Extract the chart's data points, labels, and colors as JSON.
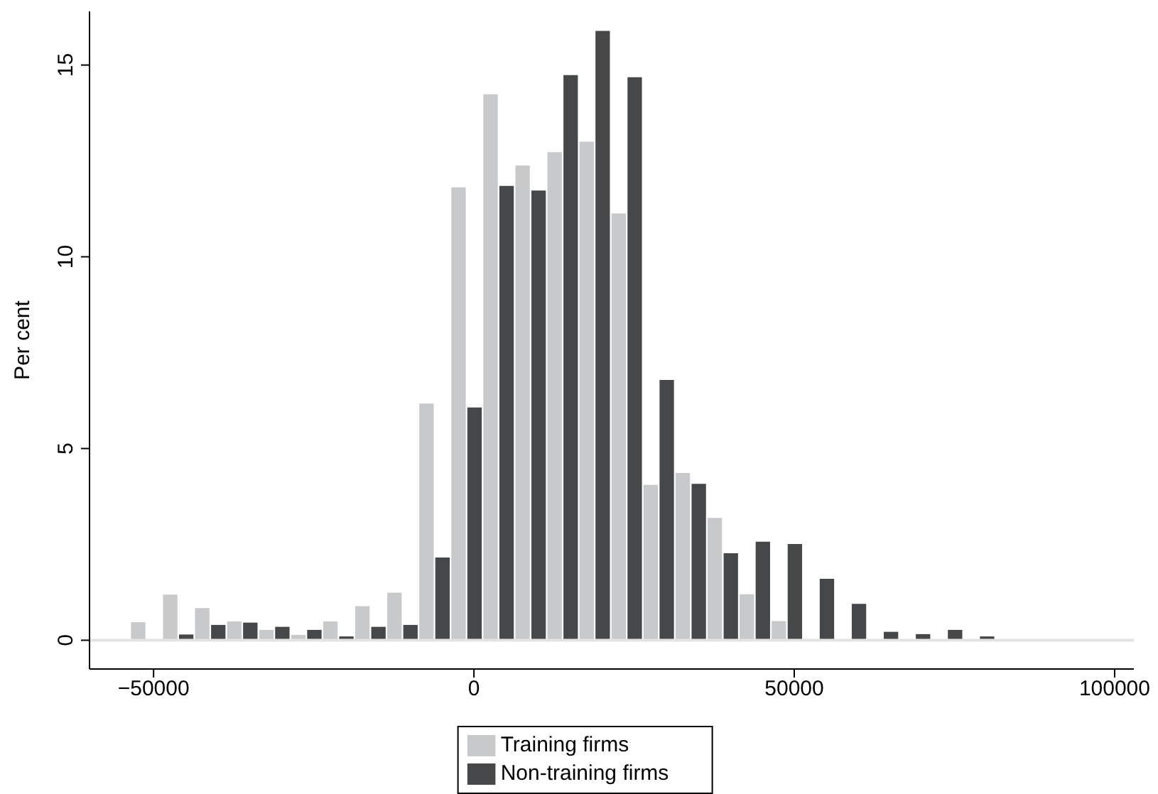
{
  "chart_data": {
    "type": "bar",
    "ylabel": "Per cent",
    "xlim": [
      -60000,
      103000
    ],
    "ylim": [
      -0.75,
      16.4
    ],
    "xticks": [
      -50000,
      0,
      50000,
      100000
    ],
    "yticks": [
      0,
      5,
      10,
      15
    ],
    "legend": "bottom",
    "ref_lines": [
      {
        "axis": "y",
        "value": 0,
        "color": "#e3e3e3"
      }
    ],
    "series": [
      {
        "name": "Training firms",
        "color": "#c8c9cb",
        "x": [
          -52500,
          -47500,
          -42500,
          -37500,
          -32500,
          -27500,
          -22500,
          -17500,
          -12500,
          -7500,
          -2500,
          2500,
          7500,
          12500,
          17500,
          22500,
          27500,
          32500,
          37500,
          42500,
          47500
        ],
        "values": [
          0.47,
          1.19,
          0.84,
          0.49,
          0.27,
          0.14,
          0.49,
          0.89,
          1.24,
          6.17,
          11.81,
          14.24,
          12.38,
          12.73,
          13.0,
          11.13,
          4.05,
          4.36,
          3.19,
          1.2,
          0.5
        ]
      },
      {
        "name": "Non-training firms",
        "color": "#464749",
        "x": [
          -45000,
          -40000,
          -35000,
          -30000,
          -25000,
          -20000,
          -15000,
          -10000,
          -5000,
          0,
          5000,
          10000,
          15000,
          20000,
          25000,
          30000,
          35000,
          40000,
          45000,
          50000,
          55000,
          60000,
          65000,
          70000,
          75000,
          80000
        ],
        "values": [
          0.15,
          0.4,
          0.46,
          0.35,
          0.27,
          0.1,
          0.35,
          0.4,
          2.16,
          6.07,
          11.85,
          11.73,
          14.74,
          15.89,
          14.68,
          6.79,
          4.08,
          2.27,
          2.57,
          2.51,
          1.6,
          0.95,
          0.22,
          0.16,
          0.27,
          0.1
        ]
      }
    ]
  }
}
